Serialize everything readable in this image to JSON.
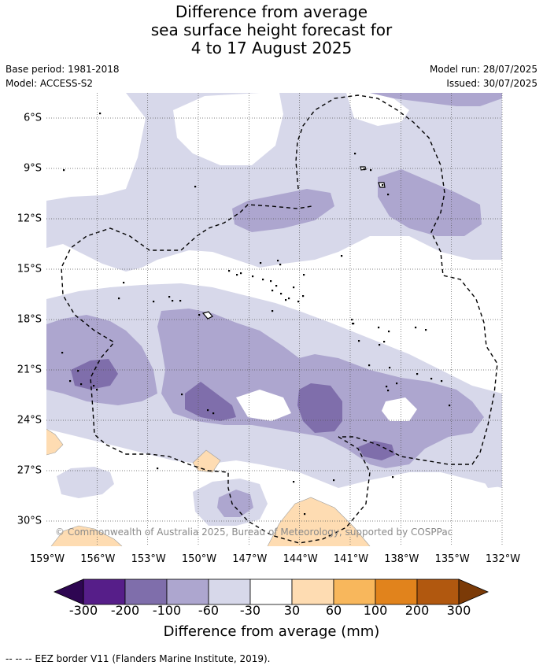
{
  "title": {
    "line1": "Difference from average",
    "line2": "sea surface height forecast for",
    "line3": "4 to 17 August 2025"
  },
  "meta": {
    "base_period": "Base period: 1981-2018",
    "model": "Model: ACCESS-S2",
    "model_run": "Model run: 28/07/2025",
    "issued": "Issued: 30/07/2025"
  },
  "map": {
    "lat_range": [
      -31.5,
      -4.5
    ],
    "lon_range": [
      -159,
      -132
    ],
    "lat_labels": [
      "6°S",
      "9°S",
      "12°S",
      "15°S",
      "18°S",
      "21°S",
      "24°S",
      "27°S",
      "30°S"
    ],
    "lat_values": [
      -6,
      -9,
      -12,
      -15,
      -18,
      -21,
      -24,
      -27,
      -30
    ],
    "lon_labels": [
      "159°W",
      "156°W",
      "153°W",
      "150°W",
      "147°W",
      "144°W",
      "141°W",
      "138°W",
      "135°W",
      "132°W"
    ],
    "lon_values": [
      -159,
      -156,
      -153,
      -150,
      -147,
      -144,
      -141,
      -138,
      -135,
      -132
    ],
    "copyright": "© Commonwealth of Australia 2025, Bureau of Meteorology, supported by COSPPac"
  },
  "colorbar": {
    "labels": [
      "-300",
      "-200",
      "-100",
      "-60",
      "-30",
      "30",
      "60",
      "100",
      "200",
      "300"
    ],
    "colors": [
      "#561e89",
      "#7f6eab",
      "#ada6cf",
      "#d7d8ea",
      "#ffffff",
      "#fedcb2",
      "#f8b75c",
      "#e1831c",
      "#b1580f"
    ],
    "under_color": "#2e0652",
    "over_color": "#7b3a07",
    "title": "Difference from average (mm)"
  },
  "colors": {
    "l1": "#d7d8ea",
    "l2": "#ada6cf",
    "l3": "#7f6eab",
    "p1": "#fedcb2"
  },
  "footnote": "--  --  -- EEZ border V11 (Flanders Marine Institute, 2019)."
}
